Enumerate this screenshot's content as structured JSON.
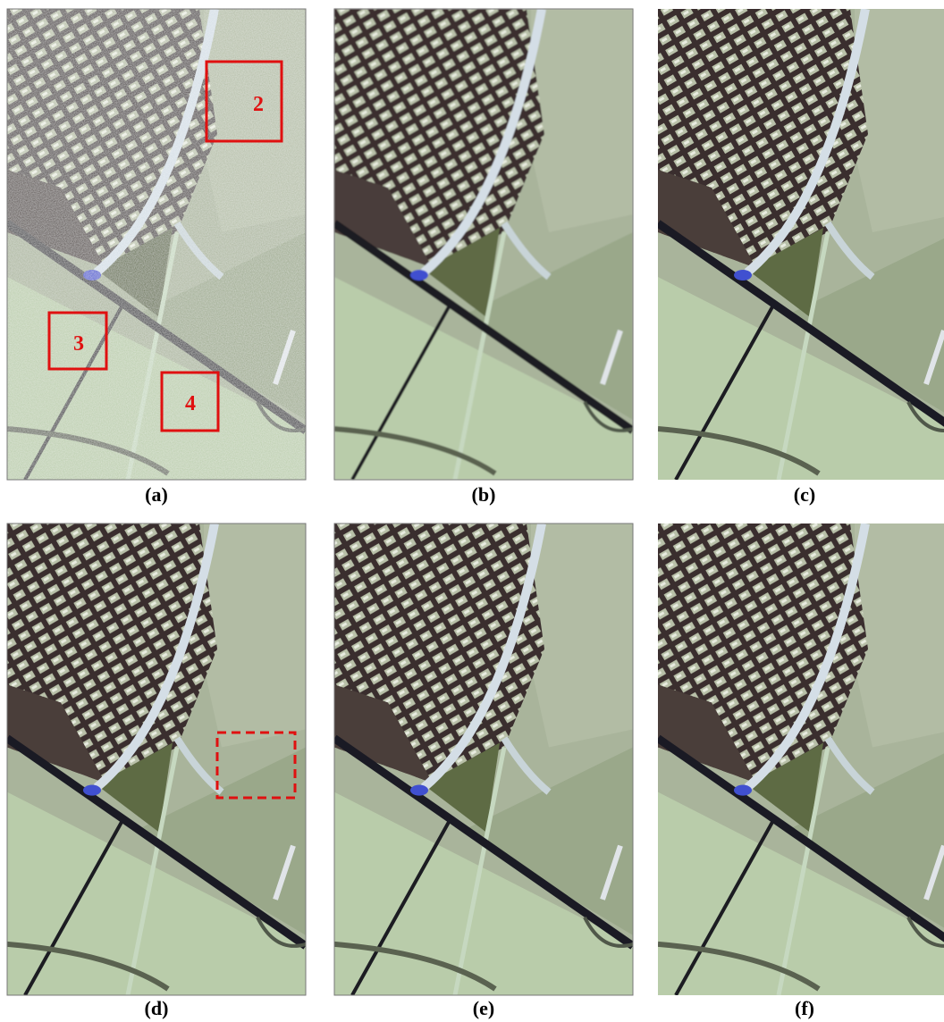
{
  "panels": [
    {
      "caption": "(a)",
      "boxes": [
        "2",
        "3",
        "4"
      ]
    },
    {
      "caption": "(b)"
    },
    {
      "caption": "(c)"
    },
    {
      "caption": "(d)"
    },
    {
      "caption": "(e)"
    },
    {
      "caption": "(f)"
    }
  ]
}
